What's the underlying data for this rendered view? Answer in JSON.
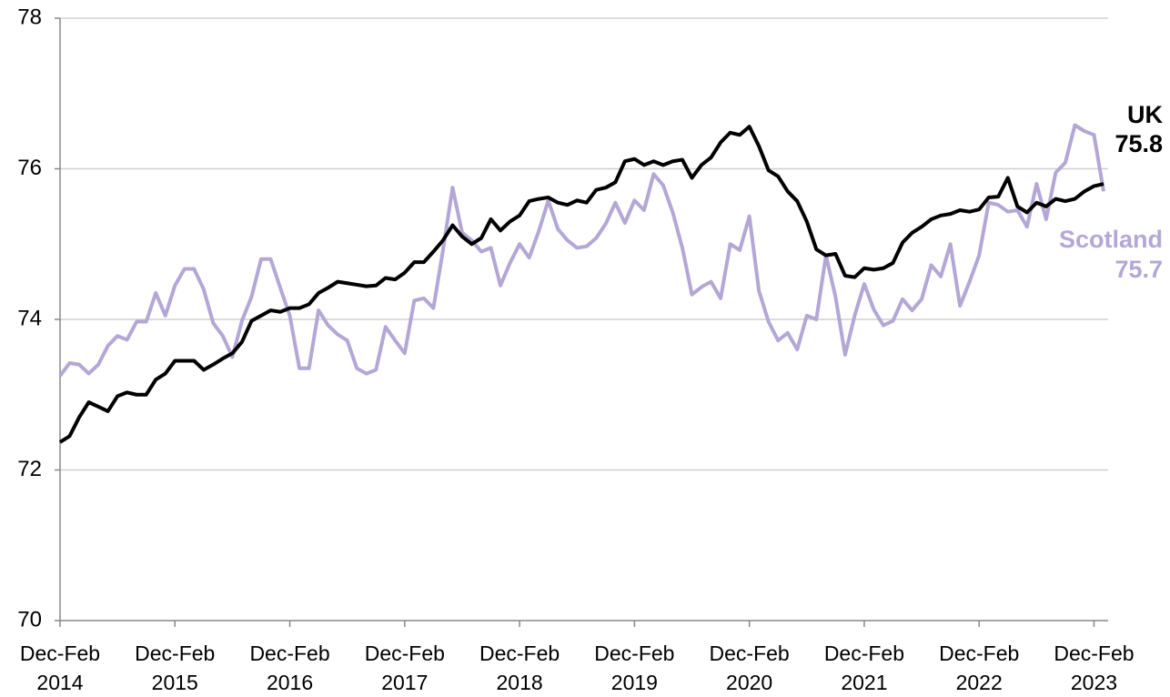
{
  "chart_data": {
    "type": "line",
    "categories": [
      "Dec-Feb 2014",
      null,
      null,
      null,
      null,
      null,
      null,
      null,
      null,
      null,
      null,
      null,
      "Dec-Feb 2015",
      null,
      null,
      null,
      null,
      null,
      null,
      null,
      null,
      null,
      null,
      null,
      "Dec-Feb 2016",
      null,
      null,
      null,
      null,
      null,
      null,
      null,
      null,
      null,
      null,
      null,
      "Dec-Feb 2017",
      null,
      null,
      null,
      null,
      null,
      null,
      null,
      null,
      null,
      null,
      null,
      "Dec-Feb 2018",
      null,
      null,
      null,
      null,
      null,
      null,
      null,
      null,
      null,
      null,
      null,
      "Dec-Feb 2019",
      null,
      null,
      null,
      null,
      null,
      null,
      null,
      null,
      null,
      null,
      null,
      "Dec-Feb 2020",
      null,
      null,
      null,
      null,
      null,
      null,
      null,
      null,
      null,
      null,
      null,
      "Dec-Feb 2021",
      null,
      null,
      null,
      null,
      null,
      null,
      null,
      null,
      null,
      null,
      null,
      "Dec-Feb 2022",
      null,
      null,
      null,
      null,
      null,
      null,
      null,
      null,
      null,
      null,
      null,
      "Dec-Feb 2023",
      null
    ],
    "series": [
      {
        "name": "UK",
        "color": "#000000",
        "values": [
          72.37,
          72.45,
          72.7,
          72.9,
          72.84,
          72.78,
          72.98,
          73.03,
          73.0,
          73.0,
          73.2,
          73.28,
          73.45,
          73.45,
          73.45,
          73.33,
          73.4,
          73.48,
          73.55,
          73.7,
          73.98,
          74.05,
          74.12,
          74.1,
          74.15,
          74.15,
          74.2,
          74.35,
          74.42,
          74.5,
          74.48,
          74.46,
          74.44,
          74.45,
          74.55,
          74.53,
          74.62,
          74.76,
          74.76,
          74.9,
          75.05,
          75.25,
          75.1,
          75.0,
          75.08,
          75.33,
          75.18,
          75.3,
          75.38,
          75.57,
          75.6,
          75.62,
          75.55,
          75.52,
          75.58,
          75.55,
          75.72,
          75.75,
          75.82,
          76.1,
          76.13,
          76.05,
          76.1,
          76.05,
          76.1,
          76.12,
          75.88,
          76.05,
          76.15,
          76.35,
          76.48,
          76.45,
          76.56,
          76.3,
          75.98,
          75.9,
          75.7,
          75.57,
          75.3,
          74.93,
          74.85,
          74.87,
          74.58,
          74.56,
          74.68,
          74.66,
          74.68,
          74.75,
          75.02,
          75.15,
          75.23,
          75.33,
          75.38,
          75.4,
          75.45,
          75.43,
          75.46,
          75.62,
          75.63,
          75.88,
          75.5,
          75.42,
          75.55,
          75.5,
          75.6,
          75.57,
          75.6,
          75.7,
          75.77,
          75.8
        ]
      },
      {
        "name": "Scotland",
        "color": "#b4a7d6",
        "values": [
          73.25,
          73.42,
          73.4,
          73.28,
          73.4,
          73.65,
          73.78,
          73.73,
          73.97,
          73.97,
          74.35,
          74.05,
          74.45,
          74.67,
          74.67,
          74.4,
          73.95,
          73.78,
          73.5,
          73.98,
          74.3,
          74.8,
          74.8,
          74.42,
          74.05,
          73.35,
          73.35,
          74.12,
          73.92,
          73.8,
          73.72,
          73.35,
          73.28,
          73.33,
          73.9,
          73.72,
          73.55,
          74.25,
          74.28,
          74.15,
          74.92,
          75.75,
          75.15,
          75.05,
          74.9,
          74.95,
          74.45,
          74.75,
          75.0,
          74.82,
          75.17,
          75.58,
          75.2,
          75.05,
          74.95,
          74.97,
          75.08,
          75.27,
          75.55,
          75.28,
          75.58,
          75.45,
          75.93,
          75.78,
          75.42,
          74.95,
          74.33,
          74.43,
          74.5,
          74.28,
          75.0,
          74.92,
          75.37,
          74.38,
          73.97,
          73.72,
          73.82,
          73.6,
          74.05,
          74.0,
          74.85,
          74.3,
          73.53,
          74.05,
          74.47,
          74.13,
          73.92,
          73.98,
          74.27,
          74.12,
          74.27,
          74.72,
          74.57,
          75.0,
          74.18,
          74.5,
          74.85,
          75.55,
          75.52,
          75.43,
          75.45,
          75.23,
          75.8,
          75.33,
          75.95,
          76.08,
          76.58,
          76.5,
          76.45,
          75.7
        ]
      }
    ],
    "ylim": [
      70,
      78
    ],
    "yticks": [
      70,
      72,
      74,
      76,
      78
    ],
    "grid": true
  }
}
